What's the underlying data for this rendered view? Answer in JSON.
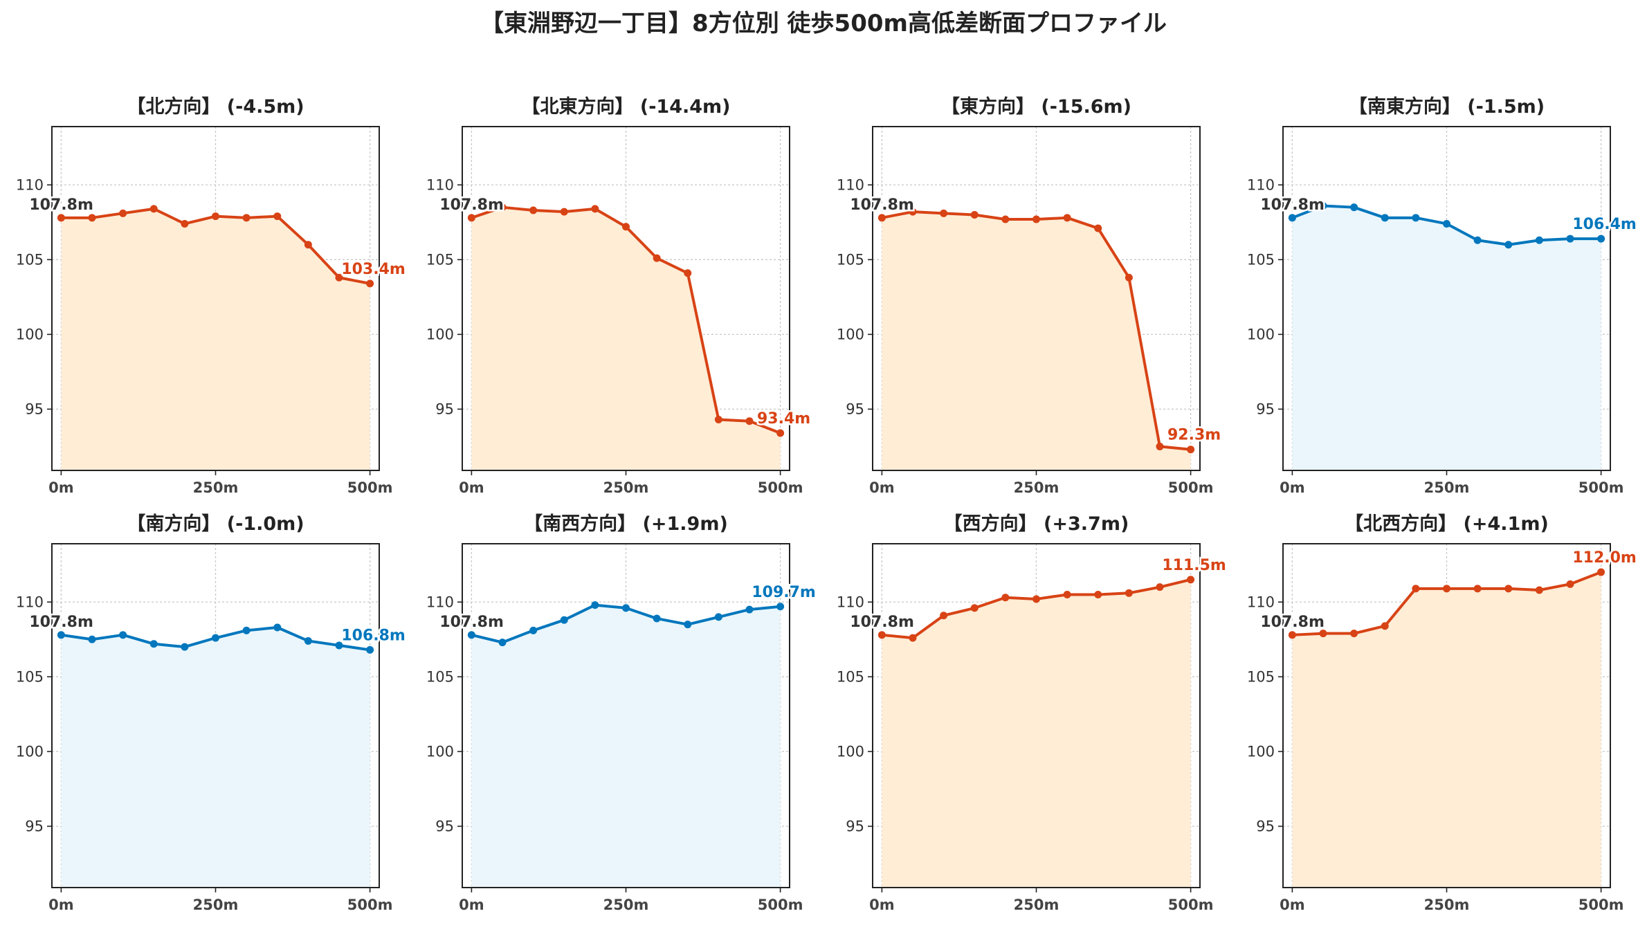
{
  "page": {
    "title": "【東淵野辺一丁目】8方位別 徒歩500m高低差断面プロファイル"
  },
  "colors": {
    "down": "#d84315",
    "down_fill": "#ffedd6",
    "flat": "#0277bd",
    "flat_fill": "#eaf6fc",
    "start_label": "#333333",
    "axis": "#222222",
    "grid": "#c8c8c8"
  },
  "chart_data": [
    {
      "type": "area",
      "title": "【北方向】 (-4.5m)",
      "x": [
        0,
        50,
        100,
        150,
        200,
        250,
        300,
        350,
        400,
        450,
        500
      ],
      "y": [
        107.8,
        107.8,
        108.1,
        108.4,
        107.4,
        107.9,
        107.8,
        107.9,
        106.0,
        103.8,
        103.4
      ],
      "xticks": [
        "0m",
        "250m",
        "500m"
      ],
      "yticks": [
        95,
        100,
        105,
        110
      ],
      "xlim": [
        -15,
        515
      ],
      "ylim": [
        90.9,
        113.9
      ],
      "grid": true,
      "line_color": "#d84315",
      "fill_color": "#ffedd6",
      "start_label": "107.8m",
      "end_label": "103.4m"
    },
    {
      "type": "area",
      "title": "【北東方向】 (-14.4m)",
      "x": [
        0,
        50,
        100,
        150,
        200,
        250,
        300,
        350,
        400,
        450,
        500
      ],
      "y": [
        107.8,
        108.5,
        108.3,
        108.2,
        108.4,
        107.2,
        105.1,
        104.1,
        94.3,
        94.2,
        93.4
      ],
      "xticks": [
        "0m",
        "250m",
        "500m"
      ],
      "yticks": [
        95,
        100,
        105,
        110
      ],
      "xlim": [
        -15,
        515
      ],
      "ylim": [
        90.9,
        113.9
      ],
      "grid": true,
      "line_color": "#d84315",
      "fill_color": "#ffedd6",
      "start_label": "107.8m",
      "end_label": "93.4m"
    },
    {
      "type": "area",
      "title": "【東方向】 (-15.6m)",
      "x": [
        0,
        50,
        100,
        150,
        200,
        250,
        300,
        350,
        400,
        450,
        500
      ],
      "y": [
        107.8,
        108.2,
        108.1,
        108.0,
        107.7,
        107.7,
        107.8,
        107.1,
        103.8,
        92.5,
        92.3
      ],
      "xticks": [
        "0m",
        "250m",
        "500m"
      ],
      "yticks": [
        95,
        100,
        105,
        110
      ],
      "xlim": [
        -15,
        515
      ],
      "ylim": [
        90.9,
        113.9
      ],
      "grid": true,
      "line_color": "#d84315",
      "fill_color": "#ffedd6",
      "start_label": "107.8m",
      "end_label": "92.3m"
    },
    {
      "type": "area",
      "title": "【南東方向】 (-1.5m)",
      "x": [
        0,
        50,
        100,
        150,
        200,
        250,
        300,
        350,
        400,
        450,
        500
      ],
      "y": [
        107.8,
        108.6,
        108.5,
        107.8,
        107.8,
        107.4,
        106.3,
        106.0,
        106.3,
        106.4,
        106.4
      ],
      "xticks": [
        "0m",
        "250m",
        "500m"
      ],
      "yticks": [
        95,
        100,
        105,
        110
      ],
      "xlim": [
        -15,
        515
      ],
      "ylim": [
        90.9,
        113.9
      ],
      "grid": true,
      "line_color": "#0277bd",
      "fill_color": "#eaf6fc",
      "start_label": "107.8m",
      "end_label": "106.4m"
    },
    {
      "type": "area",
      "title": "【南方向】 (-1.0m)",
      "x": [
        0,
        50,
        100,
        150,
        200,
        250,
        300,
        350,
        400,
        450,
        500
      ],
      "y": [
        107.8,
        107.5,
        107.8,
        107.2,
        107.0,
        107.6,
        108.1,
        108.3,
        107.4,
        107.1,
        106.8
      ],
      "xticks": [
        "0m",
        "250m",
        "500m"
      ],
      "yticks": [
        95,
        100,
        105,
        110
      ],
      "xlim": [
        -15,
        515
      ],
      "ylim": [
        90.9,
        113.9
      ],
      "grid": true,
      "line_color": "#0277bd",
      "fill_color": "#eaf6fc",
      "start_label": "107.8m",
      "end_label": "106.8m"
    },
    {
      "type": "area",
      "title": "【南西方向】 (+1.9m)",
      "x": [
        0,
        50,
        100,
        150,
        200,
        250,
        300,
        350,
        400,
        450,
        500
      ],
      "y": [
        107.8,
        107.3,
        108.1,
        108.8,
        109.8,
        109.6,
        108.9,
        108.5,
        109.0,
        109.5,
        109.7
      ],
      "xticks": [
        "0m",
        "250m",
        "500m"
      ],
      "yticks": [
        95,
        100,
        105,
        110
      ],
      "xlim": [
        -15,
        515
      ],
      "ylim": [
        90.9,
        113.9
      ],
      "grid": true,
      "line_color": "#0277bd",
      "fill_color": "#eaf6fc",
      "start_label": "107.8m",
      "end_label": "109.7m"
    },
    {
      "type": "area",
      "title": "【西方向】 (+3.7m)",
      "x": [
        0,
        50,
        100,
        150,
        200,
        250,
        300,
        350,
        400,
        450,
        500
      ],
      "y": [
        107.8,
        107.6,
        109.1,
        109.6,
        110.3,
        110.2,
        110.5,
        110.5,
        110.6,
        111.0,
        111.5
      ],
      "xticks": [
        "0m",
        "250m",
        "500m"
      ],
      "yticks": [
        95,
        100,
        105,
        110
      ],
      "xlim": [
        -15,
        515
      ],
      "ylim": [
        90.9,
        113.9
      ],
      "grid": true,
      "line_color": "#d84315",
      "fill_color": "#ffedd6",
      "start_label": "107.8m",
      "end_label": "111.5m"
    },
    {
      "type": "area",
      "title": "【北西方向】 (+4.1m)",
      "x": [
        0,
        50,
        100,
        150,
        200,
        250,
        300,
        350,
        400,
        450,
        500
      ],
      "y": [
        107.8,
        107.9,
        107.9,
        108.4,
        110.9,
        110.9,
        110.9,
        110.9,
        110.8,
        111.2,
        112.0
      ],
      "xticks": [
        "0m",
        "250m",
        "500m"
      ],
      "yticks": [
        95,
        100,
        105,
        110
      ],
      "xlim": [
        -15,
        515
      ],
      "ylim": [
        90.9,
        113.9
      ],
      "grid": true,
      "line_color": "#d84315",
      "fill_color": "#ffedd6",
      "start_label": "107.8m",
      "end_label": "112.0m"
    }
  ]
}
